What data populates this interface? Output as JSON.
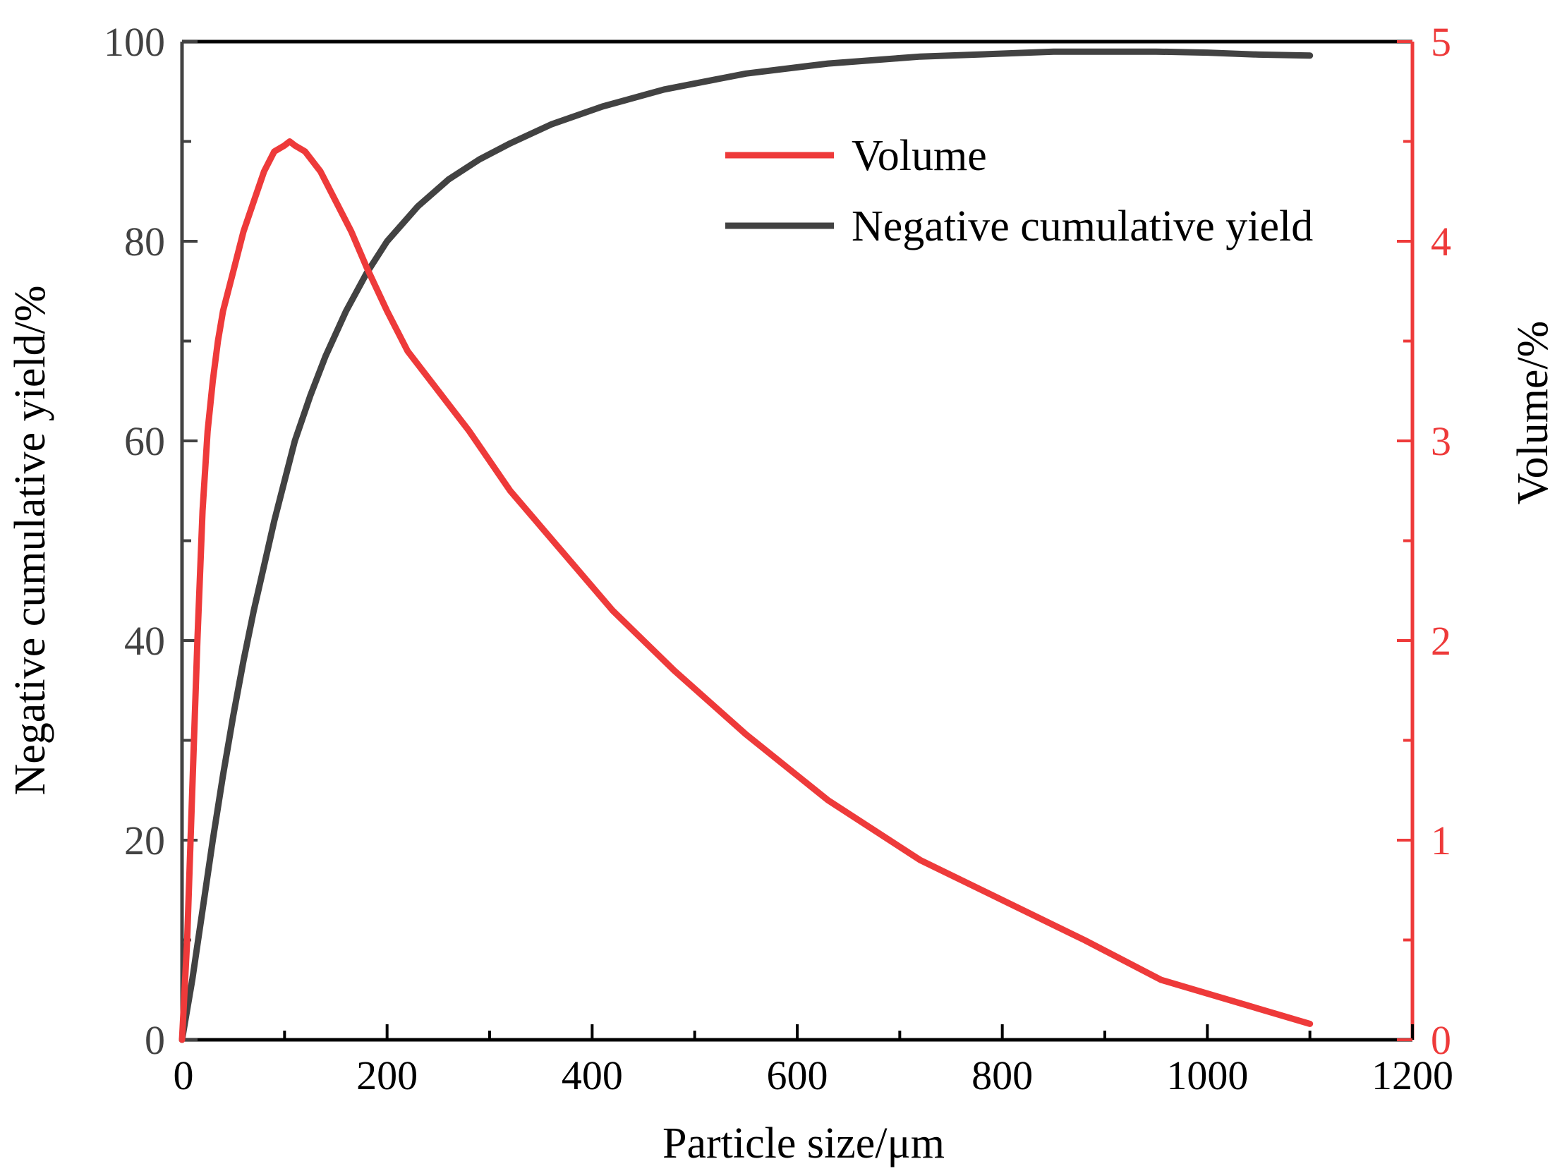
{
  "colors": {
    "volume": "#ee3a3a",
    "cumulative": "#424242",
    "left_axis_text": "#424242",
    "right_axis_text": "#ee3a3a",
    "frame": "#000000"
  },
  "chart_data": {
    "type": "line",
    "title": "",
    "xlabel": "Particle size/μm",
    "ylabel_left": "Negative cumulative yield/%",
    "ylabel_right": "Volume/%",
    "xlim": [
      0,
      1200
    ],
    "ylim_left": [
      0,
      100
    ],
    "ylim_right": [
      0,
      5
    ],
    "x_ticks": [
      "0",
      "200",
      "400",
      "600",
      "800",
      "1000",
      "1200"
    ],
    "y_left_ticks": [
      "0",
      "20",
      "40",
      "60",
      "80",
      "100"
    ],
    "y_right_ticks": [
      "0",
      "1",
      "2",
      "3",
      "4",
      "5"
    ],
    "legend_position": "top-right",
    "series": [
      {
        "name": "Volume",
        "axis": "right",
        "x": [
          0,
          5,
          10,
          15,
          20,
          25,
          30,
          35,
          40,
          50,
          60,
          70,
          80,
          90,
          100,
          105,
          110,
          120,
          135,
          150,
          165,
          180,
          200,
          220,
          250,
          280,
          320,
          370,
          420,
          480,
          550,
          630,
          720,
          800,
          880,
          955,
          1100
        ],
        "values": [
          0,
          0.5,
          1.25,
          2.0,
          2.65,
          3.05,
          3.3,
          3.5,
          3.65,
          3.85,
          4.05,
          4.2,
          4.35,
          4.45,
          4.48,
          4.5,
          4.48,
          4.45,
          4.35,
          4.2,
          4.05,
          3.87,
          3.65,
          3.45,
          3.25,
          3.05,
          2.75,
          2.45,
          2.15,
          1.85,
          1.53,
          1.2,
          0.9,
          0.7,
          0.5,
          0.3,
          0.08
        ]
      },
      {
        "name": "Negative cumulative yield",
        "axis": "left",
        "x": [
          0,
          10,
          20,
          30,
          40,
          50,
          60,
          70,
          80,
          90,
          100,
          110,
          125,
          140,
          160,
          180,
          200,
          230,
          260,
          290,
          320,
          360,
          410,
          470,
          550,
          630,
          720,
          800,
          850,
          950,
          1000,
          1050,
          1100
        ],
        "values": [
          0,
          6,
          13,
          20,
          26.5,
          32.5,
          38,
          43,
          47.5,
          52,
          56,
          60,
          64.5,
          68.5,
          73,
          76.8,
          80,
          83.5,
          86.2,
          88.2,
          89.8,
          91.7,
          93.5,
          95.2,
          96.8,
          97.8,
          98.5,
          98.8,
          99,
          99,
          98.9,
          98.7,
          98.6
        ]
      }
    ]
  }
}
